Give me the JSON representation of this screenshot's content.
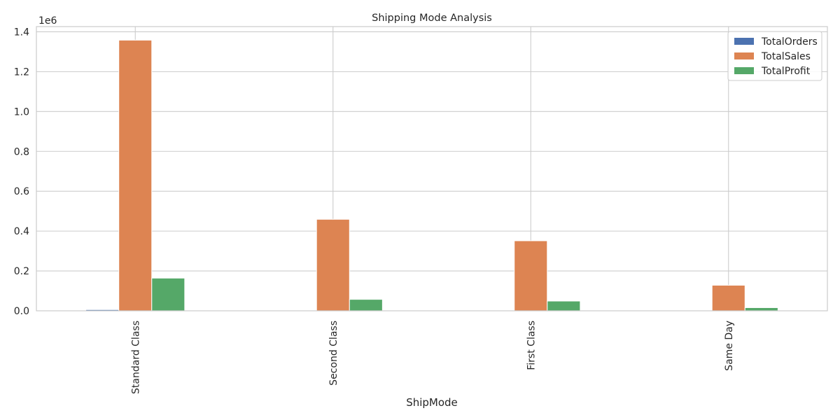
{
  "chart_data": {
    "type": "bar",
    "title": "Shipping Mode Analysis",
    "xlabel": "ShipMode",
    "ylabel": "",
    "offset_label": "1e6",
    "categories": [
      "Standard Class",
      "Second Class",
      "First Class",
      "Same Day"
    ],
    "series": [
      {
        "name": "TotalOrders",
        "color": "#4c72b0",
        "values": [
          5968,
          1945,
          1538,
          543
        ]
      },
      {
        "name": "TotalSales",
        "color": "#dd8452",
        "values": [
          1358216,
          459194,
          351428,
          128363
        ]
      },
      {
        "name": "TotalProfit",
        "color": "#55a868",
        "values": [
          164089,
          57447,
          48970,
          15892
        ]
      }
    ],
    "ylim": [
      0,
      1426126
    ],
    "yticks": [
      0,
      200000,
      400000,
      600000,
      800000,
      1000000,
      1200000,
      1400000
    ],
    "ytick_labels": [
      "0.0",
      "0.2",
      "0.4",
      "0.6",
      "0.8",
      "1.0",
      "1.2",
      "1.4"
    ],
    "grid": true,
    "legend_position": "top-right"
  }
}
